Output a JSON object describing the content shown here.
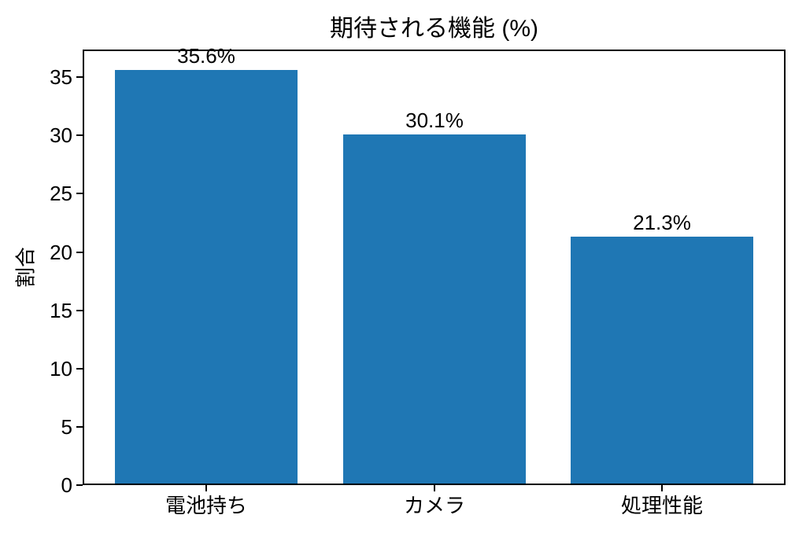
{
  "chart_data": {
    "type": "bar",
    "title": "期待される機能 (%)",
    "xlabel": "",
    "ylabel": "割合",
    "categories": [
      "電池持ち",
      "カメラ",
      "処理性能"
    ],
    "values": [
      35.6,
      30.1,
      21.3
    ],
    "value_labels": [
      "35.6%",
      "30.1%",
      "21.3%"
    ],
    "yticks": [
      "0",
      "5",
      "10",
      "15",
      "20",
      "25",
      "30",
      "35"
    ],
    "ytick_values": [
      0,
      5,
      10,
      15,
      20,
      25,
      30,
      35
    ],
    "ylim": [
      0,
      37.38
    ],
    "bar_color": "#1f77b4",
    "bar_width_fraction": 0.8,
    "grid": false,
    "legend_position": "none",
    "frame": "box"
  }
}
